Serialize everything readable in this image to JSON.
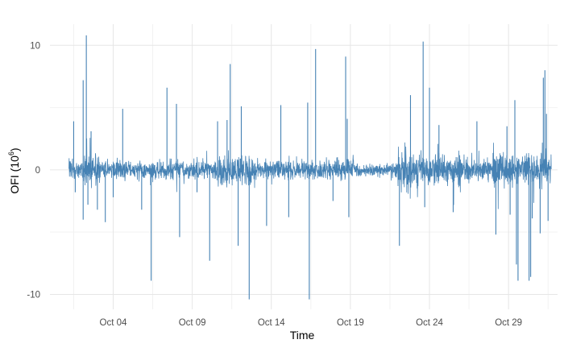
{
  "chart_data": {
    "type": "line",
    "xlabel": "Time",
    "ylabel_main": "OFI (10",
    "ylabel_sup": "6",
    "ylabel_close": ")",
    "ylim": [
      -11.2,
      11.7
    ],
    "y_ticks": [
      {
        "value": -10,
        "label": "-10"
      },
      {
        "value": 0,
        "label": "0"
      },
      {
        "value": 10,
        "label": "10"
      }
    ],
    "y_minor_ticks": [
      -5,
      5
    ],
    "xlim_days": [
      0.0,
      32.1
    ],
    "x_ticks": [
      {
        "day": 4,
        "label": "Oct 04"
      },
      {
        "day": 9,
        "label": "Oct 09"
      },
      {
        "day": 14,
        "label": "Oct 14"
      },
      {
        "day": 19,
        "label": "Oct 19"
      },
      {
        "day": 24,
        "label": "Oct 24"
      },
      {
        "day": 29,
        "label": "Oct 29"
      }
    ],
    "x_minor_ticks": [
      1.5,
      6.5,
      11.5,
      16.5,
      21.5,
      26.5,
      31.5
    ],
    "data_range_days": [
      1.2,
      31.7
    ],
    "series_color": "#4682b4",
    "spikes": [
      {
        "day": 1.5,
        "value": 3.9
      },
      {
        "day": 1.6,
        "value": -1.8
      },
      {
        "day": 2.1,
        "value": 7.2
      },
      {
        "day": 2.1,
        "value": -4.0
      },
      {
        "day": 2.3,
        "value": 10.8
      },
      {
        "day": 2.4,
        "value": -2.8
      },
      {
        "day": 2.6,
        "value": 3.1
      },
      {
        "day": 3.0,
        "value": -3.2
      },
      {
        "day": 3.5,
        "value": -4.2
      },
      {
        "day": 4.0,
        "value": -2.2
      },
      {
        "day": 4.6,
        "value": 4.9
      },
      {
        "day": 5.8,
        "value": -3.2
      },
      {
        "day": 6.4,
        "value": -8.9
      },
      {
        "day": 7.4,
        "value": 6.6
      },
      {
        "day": 8.0,
        "value": 5.3
      },
      {
        "day": 8.2,
        "value": -5.4
      },
      {
        "day": 9.3,
        "value": -1.8
      },
      {
        "day": 10.1,
        "value": -7.3
      },
      {
        "day": 10.6,
        "value": 3.9
      },
      {
        "day": 11.2,
        "value": 4.0
      },
      {
        "day": 11.4,
        "value": 8.5
      },
      {
        "day": 11.9,
        "value": -6.1
      },
      {
        "day": 12.1,
        "value": 5.1
      },
      {
        "day": 12.6,
        "value": -10.4
      },
      {
        "day": 13.7,
        "value": -4.5
      },
      {
        "day": 14.6,
        "value": 5.2
      },
      {
        "day": 15.1,
        "value": -3.8
      },
      {
        "day": 16.3,
        "value": 5.4
      },
      {
        "day": 16.4,
        "value": -10.4
      },
      {
        "day": 16.8,
        "value": 9.7
      },
      {
        "day": 17.9,
        "value": -2.5
      },
      {
        "day": 18.7,
        "value": 9.1
      },
      {
        "day": 18.8,
        "value": 4.1
      },
      {
        "day": 18.9,
        "value": -3.8
      },
      {
        "day": 22.1,
        "value": -6.1
      },
      {
        "day": 22.8,
        "value": 6.0
      },
      {
        "day": 23.6,
        "value": 10.3
      },
      {
        "day": 23.7,
        "value": -3.0
      },
      {
        "day": 24.0,
        "value": 6.6
      },
      {
        "day": 24.6,
        "value": 3.6
      },
      {
        "day": 25.5,
        "value": -3.4
      },
      {
        "day": 27.0,
        "value": 3.9
      },
      {
        "day": 28.2,
        "value": -5.2
      },
      {
        "day": 28.9,
        "value": 3.5
      },
      {
        "day": 29.1,
        "value": -3.6
      },
      {
        "day": 29.4,
        "value": 5.6
      },
      {
        "day": 29.5,
        "value": -7.6
      },
      {
        "day": 29.6,
        "value": -8.9
      },
      {
        "day": 30.3,
        "value": -8.9
      },
      {
        "day": 30.4,
        "value": -8.6
      },
      {
        "day": 30.5,
        "value": -3.9
      },
      {
        "day": 31.0,
        "value": -5.1
      },
      {
        "day": 31.2,
        "value": 7.4
      },
      {
        "day": 31.3,
        "value": 8.0
      },
      {
        "day": 31.4,
        "value": 4.5
      },
      {
        "day": 31.5,
        "value": -4.1
      }
    ]
  }
}
